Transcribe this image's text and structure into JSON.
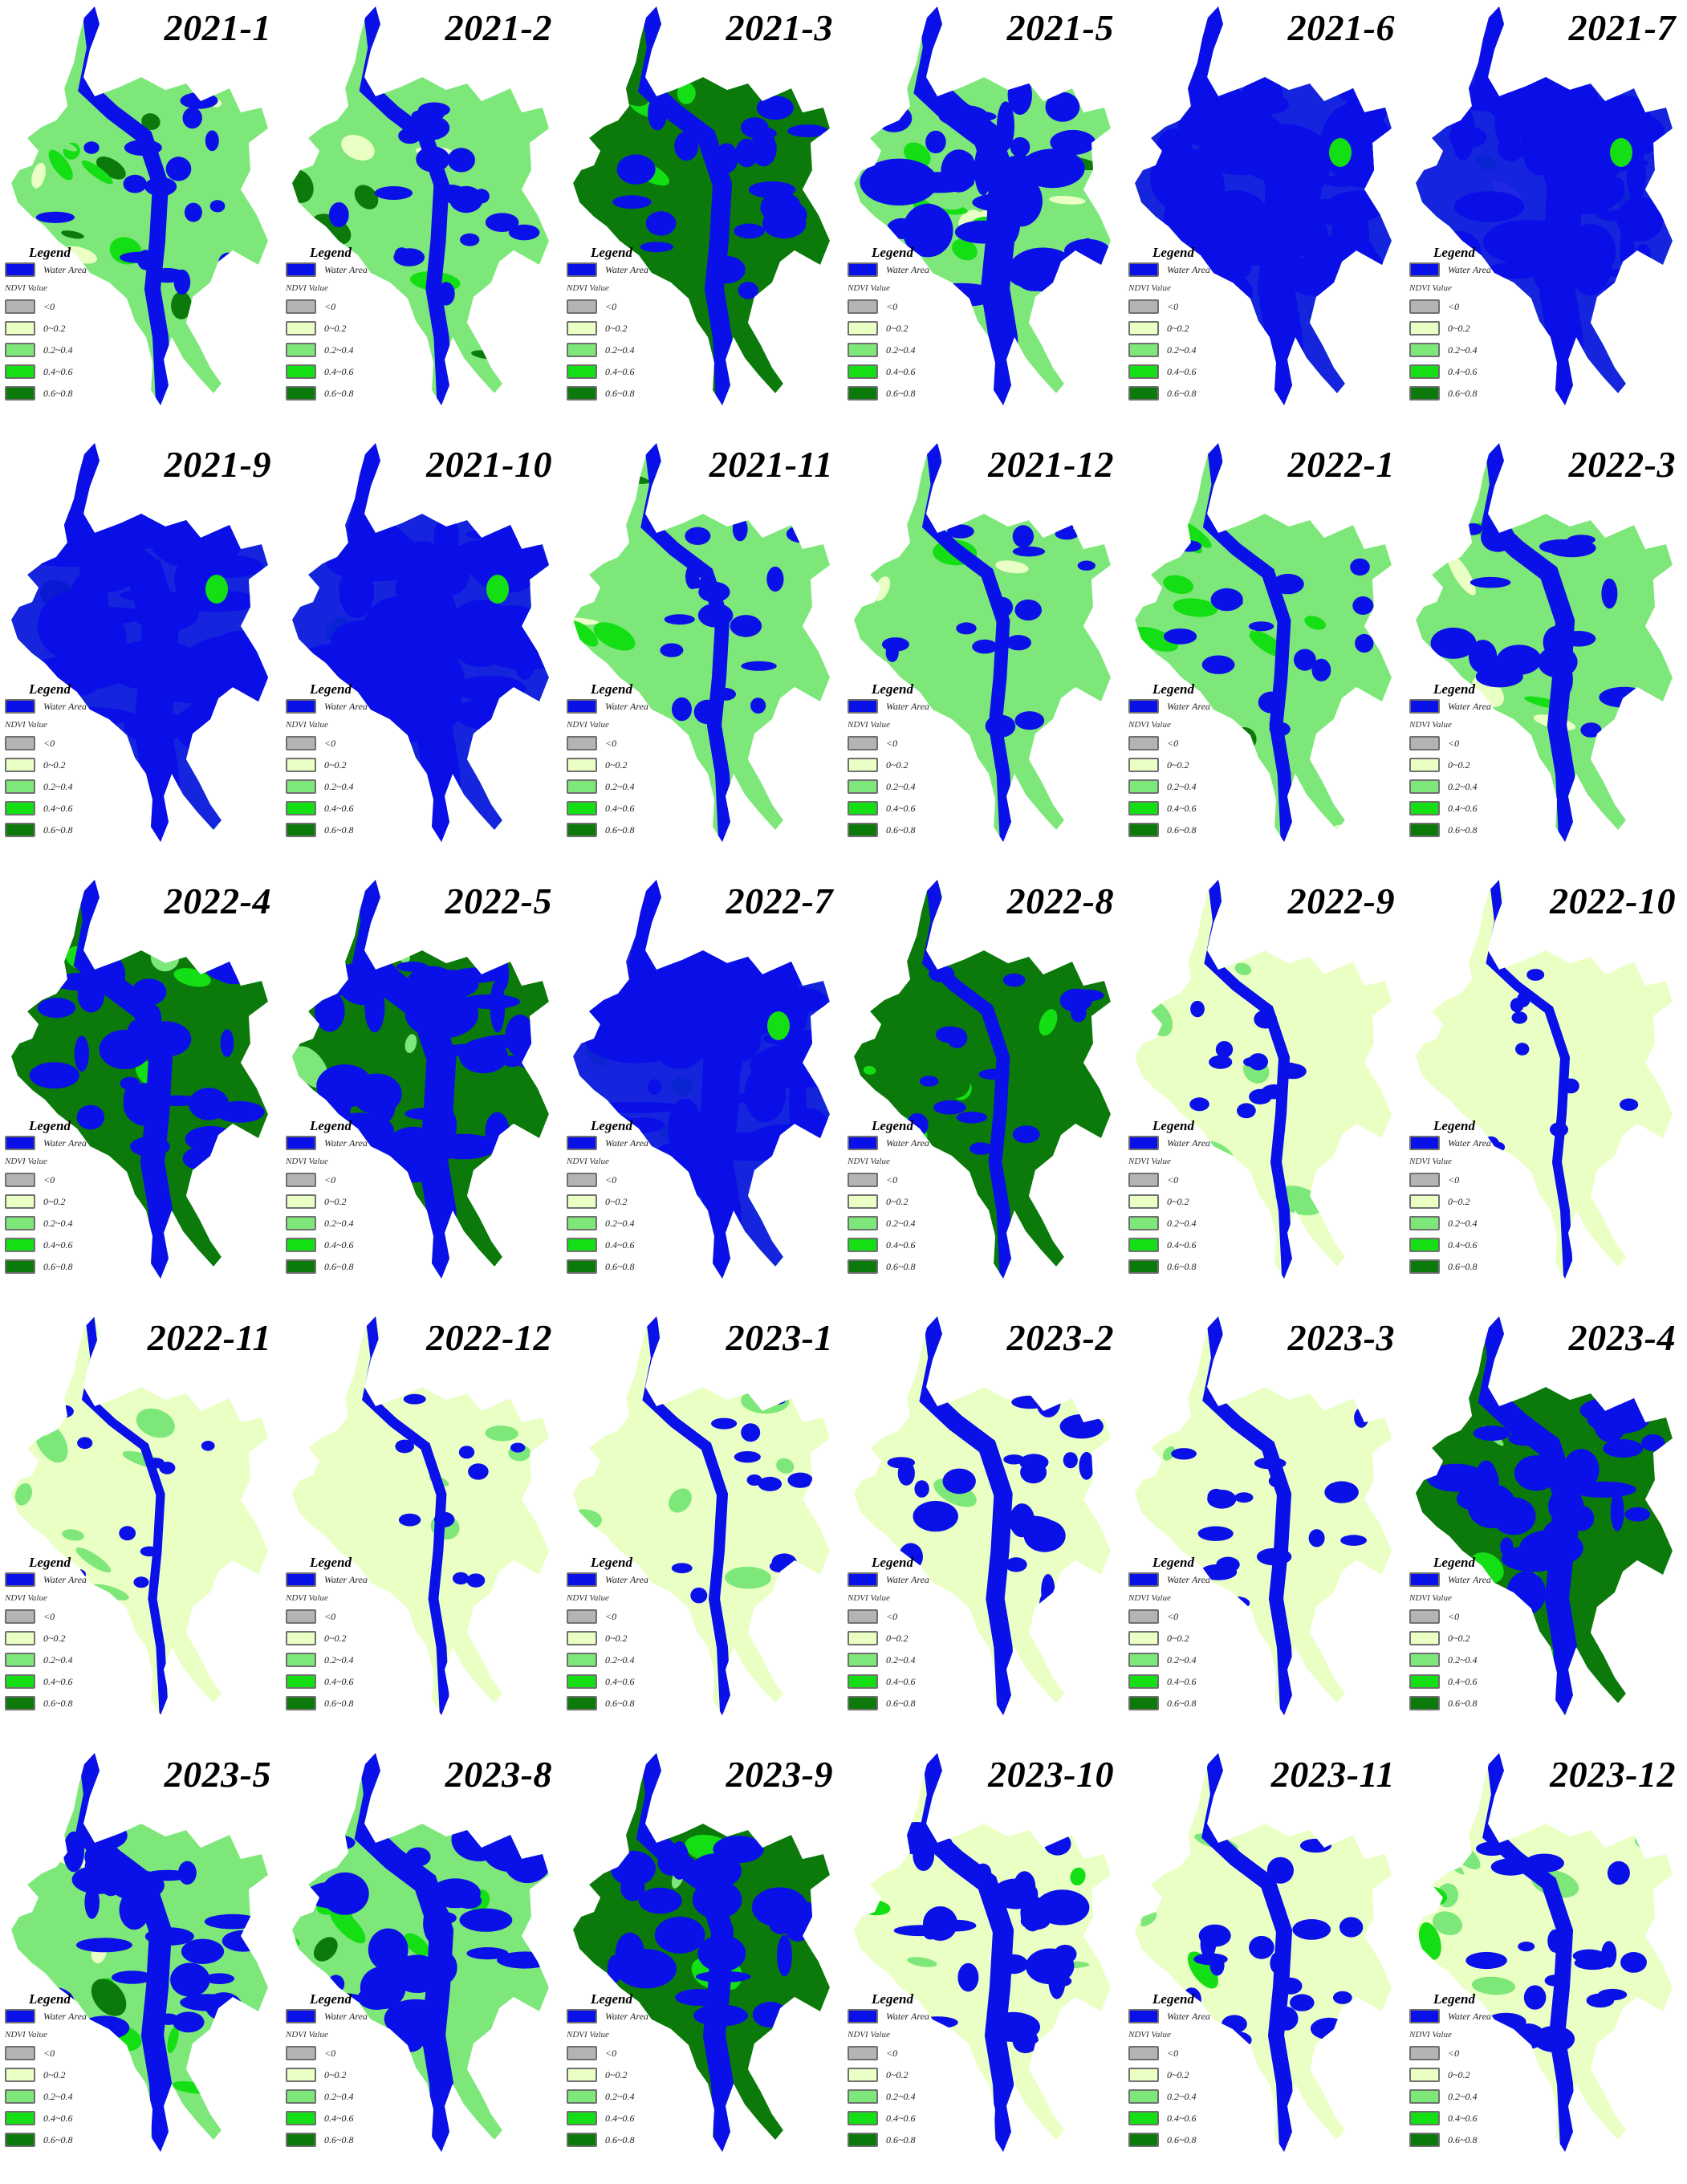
{
  "figure": {
    "legend": {
      "title": "Legend",
      "water": {
        "label": "Water Area",
        "color": "#0a10e8"
      },
      "subtitle": "NDVI Value",
      "classes": [
        {
          "label": "<0",
          "color": "#b4b4b4"
        },
        {
          "label": "0~0.2",
          "color": "#eaffc4"
        },
        {
          "label": "0.2~0.4",
          "color": "#7ee77a"
        },
        {
          "label": "0.4~0.6",
          "color": "#14de14"
        },
        {
          "label": "0.6~0.8",
          "color": "#0b7a0b"
        }
      ]
    },
    "panels": [
      {
        "title": "2021-1",
        "water_level": 0.3,
        "ndvi_mix": "green"
      },
      {
        "title": "2021-2",
        "water_level": 0.28,
        "ndvi_mix": "green"
      },
      {
        "title": "2021-3",
        "water_level": 0.4,
        "ndvi_mix": "dark"
      },
      {
        "title": "2021-5",
        "water_level": 0.7,
        "ndvi_mix": "green"
      },
      {
        "title": "2021-6",
        "water_level": 0.95,
        "ndvi_mix": "green"
      },
      {
        "title": "2021-7",
        "water_level": 0.92,
        "ndvi_mix": "green"
      },
      {
        "title": "2021-9",
        "water_level": 0.96,
        "ndvi_mix": "green"
      },
      {
        "title": "2021-10",
        "water_level": 0.96,
        "ndvi_mix": "green"
      },
      {
        "title": "2021-11",
        "water_level": 0.25,
        "ndvi_mix": "green"
      },
      {
        "title": "2021-12",
        "water_level": 0.22,
        "ndvi_mix": "green"
      },
      {
        "title": "2022-1",
        "water_level": 0.22,
        "ndvi_mix": "green"
      },
      {
        "title": "2022-3",
        "water_level": 0.4,
        "ndvi_mix": "green"
      },
      {
        "title": "2022-4",
        "water_level": 0.55,
        "ndvi_mix": "dark"
      },
      {
        "title": "2022-5",
        "water_level": 0.72,
        "ndvi_mix": "dark"
      },
      {
        "title": "2022-7",
        "water_level": 0.97,
        "ndvi_mix": "green"
      },
      {
        "title": "2022-8",
        "water_level": 0.22,
        "ndvi_mix": "dark"
      },
      {
        "title": "2022-9",
        "water_level": 0.15,
        "ndvi_mix": "pale"
      },
      {
        "title": "2022-10",
        "water_level": 0.1,
        "ndvi_mix": "pale"
      },
      {
        "title": "2022-11",
        "water_level": 0.08,
        "ndvi_mix": "pale"
      },
      {
        "title": "2022-12",
        "water_level": 0.12,
        "ndvi_mix": "pale"
      },
      {
        "title": "2023-1",
        "water_level": 0.15,
        "ndvi_mix": "pale"
      },
      {
        "title": "2023-2",
        "water_level": 0.38,
        "ndvi_mix": "pale"
      },
      {
        "title": "2023-3",
        "water_level": 0.25,
        "ndvi_mix": "pale"
      },
      {
        "title": "2023-4",
        "water_level": 0.55,
        "ndvi_mix": "dark"
      },
      {
        "title": "2023-5",
        "water_level": 0.5,
        "ndvi_mix": "green"
      },
      {
        "title": "2023-8",
        "water_level": 0.55,
        "ndvi_mix": "green"
      },
      {
        "title": "2023-9",
        "water_level": 0.5,
        "ndvi_mix": "dark"
      },
      {
        "title": "2023-10",
        "water_level": 0.45,
        "ndvi_mix": "light"
      },
      {
        "title": "2023-11",
        "water_level": 0.3,
        "ndvi_mix": "light"
      },
      {
        "title": "2023-12",
        "water_level": 0.3,
        "ndvi_mix": "light"
      }
    ]
  }
}
